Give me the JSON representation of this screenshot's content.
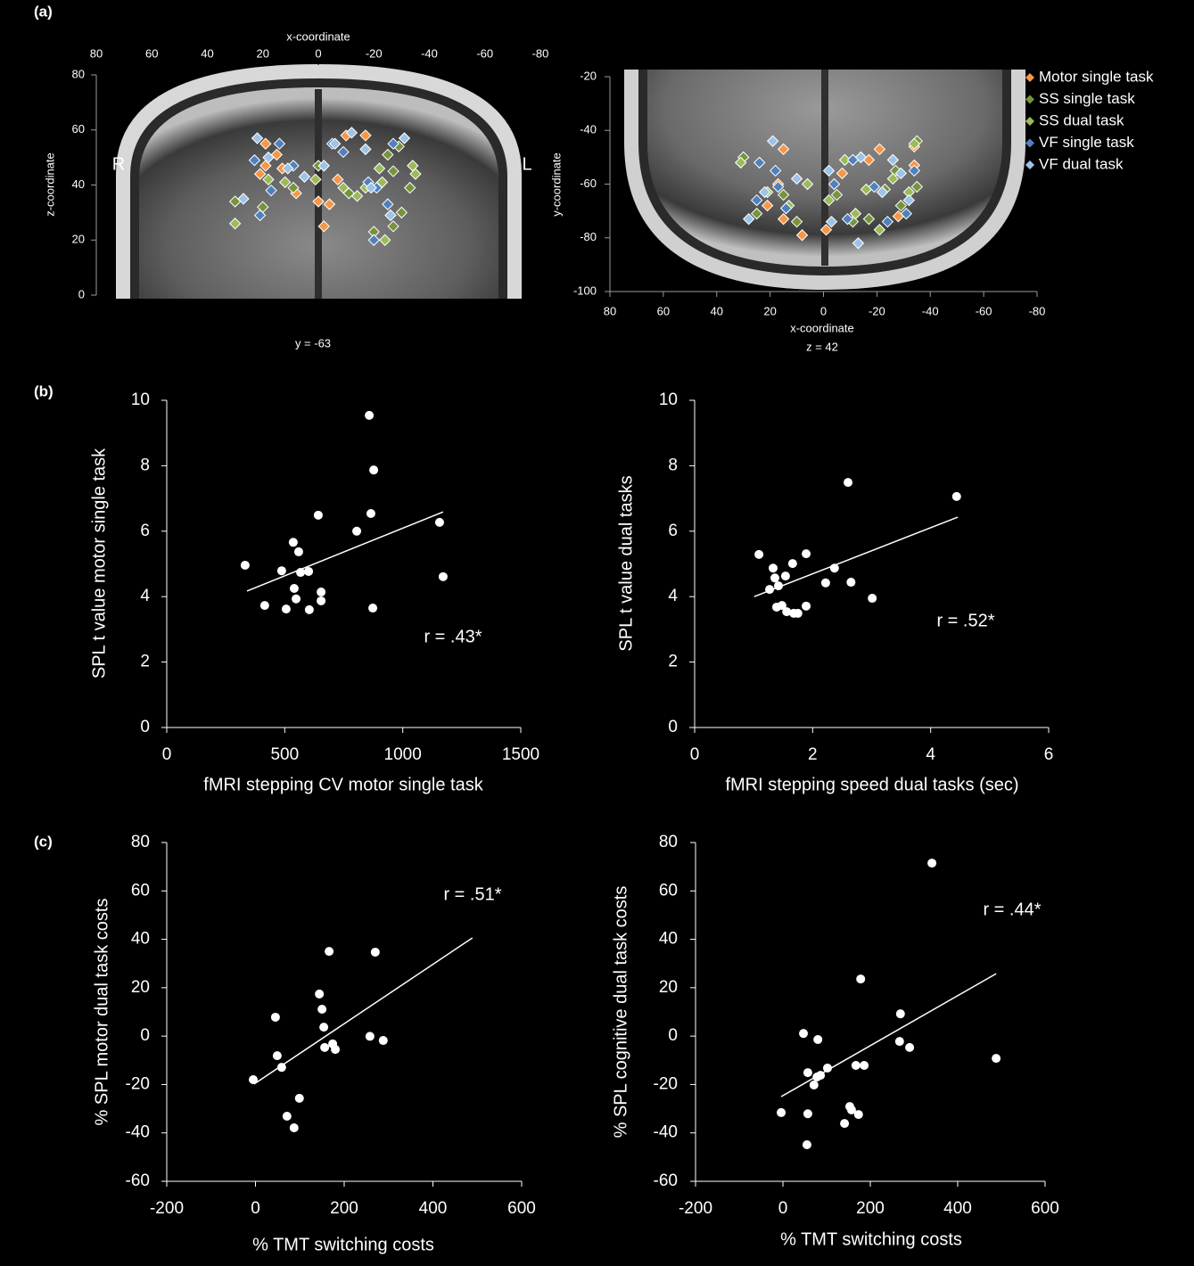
{
  "chart_data": [
    {
      "type": "scatter",
      "panel": "(a)",
      "xlabel": "x-coordinate",
      "ylabel": "z-coordinate",
      "xlim": [
        80,
        -80
      ],
      "ylim": [
        0,
        80
      ],
      "xticks": [
        80,
        60,
        40,
        20,
        0,
        -20,
        -40,
        -60,
        -80
      ],
      "yticks": [
        0,
        20,
        40,
        60,
        80
      ],
      "annotations": [
        "R",
        "L",
        "y = -63"
      ],
      "series": [
        {
          "color": "#f79646",
          "x": [
            19,
            19,
            15,
            13,
            8,
            0,
            -4,
            -2,
            -10,
            -17,
            -7,
            21
          ],
          "values": [
            55,
            47,
            51,
            46,
            37,
            34,
            33,
            25,
            58,
            58,
            42,
            44
          ]
        },
        {
          "color": "#77933c",
          "x": [
            30,
            20,
            9,
            0,
            -11,
            -20,
            -27,
            -25,
            -30,
            -33,
            -27,
            -29
          ],
          "values": [
            34,
            32,
            39,
            47,
            37,
            23,
            45,
            51,
            30,
            39,
            25,
            54
          ]
        },
        {
          "color": "#9bbb59",
          "x": [
            30,
            18,
            12,
            1,
            -9,
            -14,
            -22,
            -24,
            -34,
            -35,
            -23,
            -17
          ],
          "values": [
            26,
            42,
            41,
            42,
            39,
            36,
            46,
            20,
            47,
            44,
            41,
            39
          ]
        },
        {
          "color": "#4f81bd",
          "x": [
            23,
            21,
            14,
            17,
            -5,
            -9,
            -18,
            -20,
            -25,
            -27,
            9,
            -21
          ],
          "values": [
            49,
            29,
            55,
            38,
            55,
            52,
            41,
            20,
            33,
            55,
            47,
            39
          ]
        },
        {
          "color": "#9dc3e6",
          "x": [
            27,
            22,
            18,
            11,
            -2,
            -6,
            -12,
            -17,
            -19,
            -26,
            -31,
            5
          ],
          "values": [
            35,
            57,
            50,
            46,
            47,
            55,
            59,
            53,
            39,
            29,
            57,
            43
          ]
        }
      ]
    },
    {
      "type": "scatter",
      "xlabel": "x-coordinate",
      "ylabel": "y-coordinate",
      "xlim": [
        80,
        -80
      ],
      "ylim": [
        -100,
        -20
      ],
      "xticks": [
        80,
        60,
        40,
        20,
        0,
        -20,
        -40,
        -60,
        -80
      ],
      "yticks": [
        -100,
        -80,
        -60,
        -40,
        -20
      ],
      "annotations": [
        "z = 42"
      ],
      "legend": "top-right",
      "series": [
        {
          "name": "Motor single task",
          "color": "#f79646",
          "x": [
            15,
            17,
            21,
            8,
            -1,
            -7,
            -17,
            -21,
            -34,
            -34,
            -28,
            15
          ],
          "values": [
            -47,
            -60,
            -68,
            -79,
            -77,
            -56,
            -51,
            -47,
            -53,
            -46,
            -72,
            -73
          ]
        },
        {
          "name": "SS single task",
          "color": "#77933c",
          "x": [
            30,
            25,
            15,
            10,
            -5,
            -11,
            -17,
            -23,
            -29,
            -35,
            -35,
            -27
          ],
          "values": [
            -50,
            -71,
            -64,
            -74,
            -64,
            -74,
            -73,
            -62,
            -68,
            -61,
            -44,
            -55
          ]
        },
        {
          "name": "SS dual task",
          "color": "#9bbb59",
          "x": [
            31,
            21,
            13,
            -2,
            -8,
            -12,
            -21,
            -26,
            -32,
            -34,
            -16,
            6
          ],
          "values": [
            -52,
            -63,
            -68,
            -66,
            -51,
            -71,
            -77,
            -58,
            -63,
            -45,
            -62,
            -60
          ]
        },
        {
          "name": "VF single task",
          "color": "#4f81bd",
          "x": [
            24,
            25,
            18,
            14,
            -4,
            -11,
            -19,
            -24,
            -34,
            -31,
            -9,
            17
          ],
          "values": [
            -52,
            -66,
            -55,
            -69,
            -60,
            -51,
            -61,
            -74,
            -55,
            -71,
            -73,
            -61
          ]
        },
        {
          "name": "VF dual task",
          "color": "#9dc3e6",
          "x": [
            28,
            19,
            22,
            10,
            -3,
            -13,
            -14,
            -22,
            -26,
            -32,
            -29,
            -2
          ],
          "values": [
            -73,
            -44,
            -63,
            -58,
            -74,
            -82,
            -50,
            -63,
            -51,
            -66,
            -56,
            -55
          ]
        }
      ]
    },
    {
      "type": "scatter",
      "panel": "(b)",
      "xlabel": "fMRI stepping CV motor single task",
      "ylabel": "SPL t value motor single task",
      "xlim": [
        0,
        1500
      ],
      "ylim": [
        0,
        10
      ],
      "xticks": [
        0,
        500,
        1000,
        1500
      ],
      "yticks": [
        0,
        2,
        4,
        6,
        8,
        10
      ],
      "annotations": [
        "r = .43*"
      ],
      "color": "#ffffff",
      "x": [
        332,
        415,
        487,
        506,
        536,
        540,
        548,
        559,
        567,
        601,
        604,
        642,
        654,
        654,
        805,
        858,
        865,
        873,
        877,
        1156,
        1171
      ],
      "values": [
        4.96,
        3.73,
        4.79,
        3.62,
        5.66,
        4.25,
        3.93,
        5.37,
        4.74,
        4.77,
        3.6,
        6.49,
        4.14,
        3.87,
        6.0,
        9.54,
        6.54,
        3.65,
        7.87,
        6.27,
        4.61
      ],
      "trendline": {
        "x": [
          340,
          1171
        ],
        "values": [
          4.17,
          6.59
        ]
      }
    },
    {
      "type": "scatter",
      "xlabel": "fMRI stepping speed dual tasks (sec)",
      "ylabel": "SPL t value dual tasks",
      "xlim": [
        0,
        6
      ],
      "ylim": [
        0,
        10
      ],
      "xticks": [
        0,
        2,
        4,
        6
      ],
      "yticks": [
        0,
        2,
        4,
        6,
        8,
        10
      ],
      "annotations": [
        "r = .52*"
      ],
      "color": "#ffffff",
      "x": [
        1.09,
        1.27,
        1.33,
        1.36,
        1.39,
        1.42,
        1.48,
        1.54,
        1.56,
        1.66,
        1.68,
        1.75,
        1.89,
        1.89,
        2.22,
        2.37,
        2.6,
        2.65,
        3.01,
        4.44
      ],
      "values": [
        5.29,
        4.22,
        4.87,
        4.57,
        3.68,
        4.33,
        3.73,
        4.63,
        3.54,
        5.01,
        3.49,
        3.49,
        5.31,
        3.71,
        4.42,
        4.87,
        7.49,
        4.44,
        3.95,
        7.06
      ],
      "trendline": {
        "x": [
          1.01,
          4.46
        ],
        "values": [
          4.0,
          6.43
        ]
      }
    },
    {
      "type": "scatter",
      "panel": "(c)",
      "xlabel": "% TMT switching costs",
      "ylabel": "% SPL motor dual task costs",
      "xlim": [
        -200,
        600
      ],
      "ylim": [
        -60,
        80
      ],
      "xticks": [
        -200,
        0,
        200,
        400,
        600
      ],
      "yticks": [
        -60,
        -40,
        -20,
        0,
        20,
        40,
        60,
        80
      ],
      "annotations": [
        "r = .51*"
      ],
      "color": "#ffffff",
      "x": [
        -5,
        45,
        49,
        59,
        71,
        87,
        99,
        144,
        150,
        154,
        156,
        166,
        174,
        180,
        258,
        270,
        288
      ],
      "values": [
        -18.0,
        7.8,
        -8.1,
        -12.9,
        -33.1,
        -37.9,
        -25.7,
        17.4,
        11.1,
        3.7,
        -4.7,
        35.0,
        -3.2,
        -5.5,
        -0.1,
        34.7,
        -1.8
      ],
      "trendline": {
        "x": [
          -3,
          489
        ],
        "values": [
          -19.8,
          40.6
        ]
      }
    },
    {
      "type": "scatter",
      "xlabel": "% TMT switching costs",
      "ylabel": "% SPL cognitive dual task costs",
      "xlim": [
        -200,
        600
      ],
      "ylim": [
        -60,
        80
      ],
      "xticks": [
        -200,
        0,
        200,
        400,
        600
      ],
      "yticks": [
        -60,
        -40,
        -20,
        0,
        20,
        40,
        60,
        80
      ],
      "annotations": [
        "r = .44*"
      ],
      "color": "#ffffff",
      "x": [
        -4,
        47,
        55,
        57,
        57,
        71,
        78,
        80,
        86,
        102,
        141,
        153,
        157,
        173,
        167,
        186,
        178,
        267,
        269,
        290,
        341,
        488
      ],
      "values": [
        -31.6,
        1.1,
        -44.9,
        -15.1,
        -32.1,
        -20.2,
        -16.9,
        -1.4,
        -16.2,
        -13.2,
        -36.1,
        -29.1,
        -30.5,
        -32.4,
        -12.1,
        -12.1,
        23.6,
        -2.2,
        9.2,
        -4.7,
        71.5,
        -9.2
      ],
      "trendline": {
        "x": [
          -4,
          488
        ],
        "values": [
          -25.0,
          25.8
        ]
      }
    }
  ]
}
